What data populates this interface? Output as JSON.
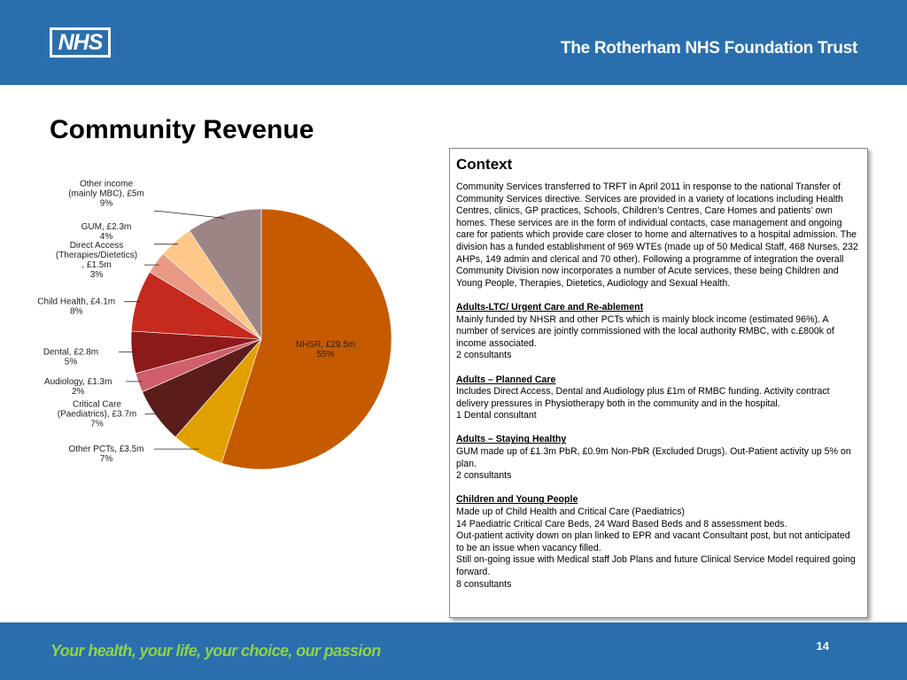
{
  "header": {
    "logo_text": "NHS",
    "trust_name": "The Rotherham NHS Foundation Trust"
  },
  "title": "Community Revenue",
  "chart_data": {
    "type": "pie",
    "title": "",
    "slices": [
      {
        "label_lines": [
          "NHSR, £29.5m",
          "55%"
        ],
        "value": 29.5,
        "percent": 55,
        "color": "#c55a00"
      },
      {
        "label_lines": [
          "Other PCTs, £3.5m",
          "7%"
        ],
        "value": 3.5,
        "percent": 7,
        "color": "#e2a000"
      },
      {
        "label_lines": [
          "Critical Care",
          "(Paediatrics), £3.7m",
          "7%"
        ],
        "value": 3.7,
        "percent": 7,
        "color": "#5b1d1b"
      },
      {
        "label_lines": [
          "Audiology, £1.3m",
          "2%"
        ],
        "value": 1.3,
        "percent": 2,
        "color": "#d05e6b"
      },
      {
        "label_lines": [
          "Dental, £2.8m",
          "5%"
        ],
        "value": 2.8,
        "percent": 5,
        "color": "#8c1a1a"
      },
      {
        "label_lines": [
          "Child Health, £4.1m",
          "8%"
        ],
        "value": 4.1,
        "percent": 8,
        "color": "#c62a1e"
      },
      {
        "label_lines": [
          "Direct Access",
          "(Therapies/Dietetics)",
          ", £1.5m",
          "3%"
        ],
        "value": 1.5,
        "percent": 3,
        "color": "#e99a86"
      },
      {
        "label_lines": [
          "GUM, £2.3m",
          "4%"
        ],
        "value": 2.3,
        "percent": 4,
        "color": "#ffc888"
      },
      {
        "label_lines": [
          "Other income",
          "(mainly MBC), £5m",
          "9%"
        ],
        "value": 5,
        "percent": 9,
        "color": "#9e8585"
      }
    ],
    "label_color_inside": "#ffffff",
    "label_color_outside": "#222222"
  },
  "context": {
    "heading": "Context",
    "intro": "Community Services transferred to TRFT in April 2011 in response to the national Transfer of Community Services directive. Services are provided in a variety of locations including Health Centres, clinics, GP practices, Schools, Children’s Centres, Care Homes and patients’ own homes. These services are in the form of individual contacts, case management and ongoing care for patients which provide care closer to home and alternatives to a hospital admission. The division has a funded establishment of 969 WTEs (made up of 50 Medical Staff, 468 Nurses, 232 AHPs, 149 admin and clerical and 70 other). Following a programme of integration the overall Community Division now incorporates a number of Acute services, these being Children and Young People, Therapies, Dietetics, Audiology and Sexual Health.",
    "sections": [
      {
        "title": "Adults-LTC/ Urgent Care and Re-ablement",
        "lines": [
          "Mainly funded by NHSR and other PCTs which is mainly block income (estimated 96%). A number of services are jointly commissioned with the local authority RMBC, with c.£800k of income associated.",
          "2 consultants"
        ]
      },
      {
        "title": "Adults – Planned Care",
        "lines": [
          "Includes Direct Access, Dental and Audiology plus £1m of RMBC funding. Activity contract delivery pressures in Physiotherapy both in the community and in the hospital.",
          "1 Dental consultant"
        ]
      },
      {
        "title": "Adults – Staying Healthy",
        "lines": [
          "GUM made up of £1.3m PbR, £0.9m Non-PbR (Excluded Drugs). Out-Patient activity up 5% on plan.",
          "2 consultants"
        ]
      },
      {
        "title": "Children and Young People",
        "lines": [
          "Made up of Child Health and Critical Care (Paediatrics)",
          "14 Paediatric Critical Care Beds, 24 Ward Based Beds and 8 assessment beds.",
          "Out-patient activity down on plan linked to EPR and vacant Consultant post, but not anticipated to be an issue when vacancy filled.",
          "Still on-going issue with Medical staff Job Plans and future Clinical Service Model required going forward.",
          "8 consultants"
        ]
      }
    ]
  },
  "footer": {
    "tagline": "Your health, your life, your choice, our passion",
    "page_number": "14"
  },
  "colors": {
    "brand_blue": "#2a6fad",
    "tagline_green": "#8fd24a"
  }
}
